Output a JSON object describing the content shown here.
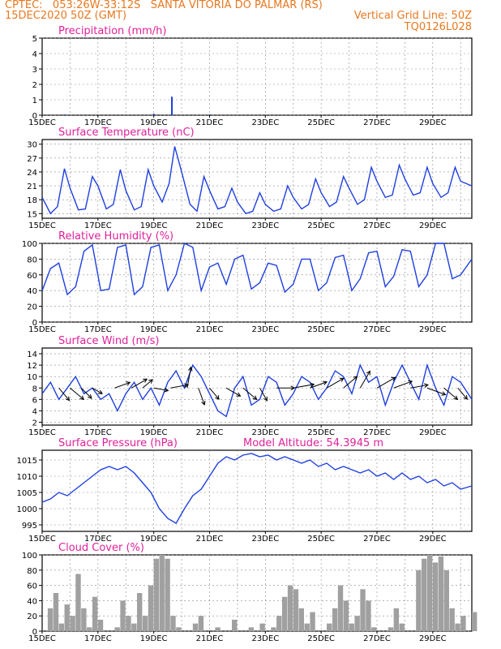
{
  "header": {
    "line1": "CPTEC:   053:26W-33:12S   SANTA VITORIA DO PALMAR (RS)",
    "line2": "15DEC2020 50Z (GMT)",
    "grid_note": "Vertical Grid Line: 50Z",
    "code": "TQ0126L028"
  },
  "x_labels": [
    "15DEC",
    "17DEC",
    "19DEC",
    "21DEC",
    "23DEC",
    "25DEC",
    "27DEC",
    "29DEC"
  ],
  "colors": {
    "line": "#1f3fdf",
    "title": "#e0209a",
    "header": "#e87820",
    "bar": "#a0a0a0",
    "grid": "#8a8a8a"
  },
  "chart_data": [
    {
      "id": "precip",
      "type": "bar",
      "title": "Precipitation (mm/h)",
      "ylim": [
        0,
        5
      ],
      "yticks": [
        0,
        1,
        2,
        3,
        4,
        5
      ],
      "x_range_days": [
        15,
        30.4
      ],
      "x": [
        15.8,
        19.0,
        19.65,
        21.0
      ],
      "values": [
        0.05,
        0.1,
        1.2,
        0.05
      ]
    },
    {
      "id": "temp",
      "type": "line",
      "title": "Surface Temperature (nC)",
      "ylim": [
        14,
        31
      ],
      "yticks": [
        15,
        18,
        21,
        24,
        27,
        30
      ],
      "x_range_days": [
        15,
        30.4
      ],
      "x": [
        15.0,
        15.3,
        15.55,
        15.8,
        16.0,
        16.3,
        16.55,
        16.8,
        17.0,
        17.3,
        17.55,
        17.8,
        18.0,
        18.3,
        18.55,
        18.8,
        19.0,
        19.3,
        19.55,
        19.75,
        20.0,
        20.3,
        20.55,
        20.8,
        21.0,
        21.3,
        21.55,
        21.8,
        22.0,
        22.3,
        22.55,
        22.8,
        23.0,
        23.3,
        23.55,
        23.8,
        24.0,
        24.3,
        24.55,
        24.8,
        25.0,
        25.3,
        25.55,
        25.8,
        26.0,
        26.3,
        26.55,
        26.8,
        27.0,
        27.3,
        27.55,
        27.8,
        28.0,
        28.3,
        28.55,
        28.8,
        29.0,
        29.3,
        29.55,
        29.8,
        30.0,
        30.4
      ],
      "y": [
        18.5,
        15.0,
        16.5,
        24.7,
        20.5,
        15.8,
        16.0,
        23.0,
        21.0,
        16.0,
        17.0,
        24.5,
        20.0,
        15.8,
        16.5,
        24.5,
        21.0,
        17.5,
        21.5,
        29.5,
        24.0,
        17.0,
        15.5,
        23.0,
        20.0,
        16.0,
        16.5,
        20.5,
        17.5,
        15.0,
        15.5,
        19.5,
        17.0,
        15.5,
        16.0,
        21.0,
        18.5,
        16.0,
        17.0,
        22.5,
        19.5,
        16.5,
        17.5,
        23.0,
        20.5,
        17.0,
        18.0,
        25.0,
        22.0,
        18.5,
        19.0,
        25.5,
        22.5,
        19.0,
        19.5,
        25.0,
        21.5,
        18.5,
        19.5,
        25.0,
        22.0,
        21.0
      ]
    },
    {
      "id": "rh",
      "type": "line",
      "title": "Relative Humidity (%)",
      "ylim": [
        0,
        100
      ],
      "yticks": [
        0,
        20,
        40,
        60,
        80,
        100
      ],
      "x_range_days": [
        15,
        30.4
      ],
      "x": [
        15.0,
        15.3,
        15.6,
        15.9,
        16.2,
        16.5,
        16.8,
        17.1,
        17.4,
        17.7,
        18.0,
        18.3,
        18.6,
        18.9,
        19.2,
        19.5,
        19.8,
        20.1,
        20.4,
        20.7,
        21.0,
        21.3,
        21.6,
        21.9,
        22.2,
        22.5,
        22.8,
        23.1,
        23.4,
        23.7,
        24.0,
        24.3,
        24.6,
        24.9,
        25.2,
        25.5,
        25.8,
        26.1,
        26.4,
        26.7,
        27.0,
        27.3,
        27.6,
        27.9,
        28.2,
        28.5,
        28.8,
        29.1,
        29.4,
        29.7,
        30.0,
        30.4
      ],
      "y": [
        40,
        68,
        75,
        35,
        45,
        90,
        98,
        40,
        42,
        95,
        98,
        35,
        45,
        95,
        98,
        40,
        60,
        100,
        95,
        40,
        70,
        75,
        48,
        80,
        85,
        42,
        50,
        75,
        72,
        38,
        48,
        80,
        80,
        40,
        50,
        82,
        85,
        40,
        55,
        88,
        90,
        45,
        58,
        92,
        90,
        45,
        60,
        100,
        100,
        55,
        60,
        80
      ]
    },
    {
      "id": "wind",
      "type": "line",
      "title": "Surface Wind (m/s)",
      "ylim": [
        1.5,
        15
      ],
      "yticks": [
        2,
        4,
        6,
        8,
        10,
        12,
        14
      ],
      "x_range_days": [
        15,
        30.4
      ],
      "x": [
        15.0,
        15.3,
        15.6,
        15.9,
        16.2,
        16.5,
        16.8,
        17.1,
        17.4,
        17.7,
        18.0,
        18.3,
        18.6,
        18.9,
        19.2,
        19.5,
        19.8,
        20.1,
        20.4,
        20.7,
        21.0,
        21.3,
        21.6,
        21.9,
        22.2,
        22.5,
        22.8,
        23.1,
        23.4,
        23.7,
        24.0,
        24.3,
        24.6,
        24.9,
        25.2,
        25.5,
        25.8,
        26.1,
        26.4,
        26.7,
        27.0,
        27.3,
        27.6,
        27.9,
        28.2,
        28.5,
        28.8,
        29.1,
        29.4,
        29.7,
        30.0,
        30.4
      ],
      "y": [
        7,
        9,
        6,
        8,
        10,
        7,
        8,
        6,
        7,
        4,
        7,
        9,
        6,
        8,
        5,
        9,
        11,
        8,
        12,
        10,
        7,
        4,
        3,
        8,
        10,
        5,
        6,
        10,
        9,
        5,
        7,
        10,
        9,
        6,
        8,
        11,
        10,
        7,
        12,
        9,
        10,
        5,
        9,
        12,
        9,
        6,
        12,
        8,
        5,
        10,
        9,
        6
      ],
      "barbs": [
        {
          "x": 15.6,
          "dir": 140,
          "len": 20
        },
        {
          "x": 16.0,
          "dir": 130,
          "len": 22
        },
        {
          "x": 16.4,
          "dir": 135,
          "len": 18
        },
        {
          "x": 16.8,
          "dir": 120,
          "len": 14
        },
        {
          "x": 17.6,
          "dir": 70,
          "len": 20
        },
        {
          "x": 18.2,
          "dir": 60,
          "len": 22
        },
        {
          "x": 18.6,
          "dir": 50,
          "len": 16
        },
        {
          "x": 19.0,
          "dir": 100,
          "len": 18
        },
        {
          "x": 19.6,
          "dir": 80,
          "len": 22
        },
        {
          "x": 20.2,
          "dir": 10,
          "len": 26
        },
        {
          "x": 20.6,
          "dir": 160,
          "len": 22
        },
        {
          "x": 21.0,
          "dir": 140,
          "len": 18
        },
        {
          "x": 21.6,
          "dir": 120,
          "len": 20
        },
        {
          "x": 22.2,
          "dir": 130,
          "len": 22
        },
        {
          "x": 22.8,
          "dir": 150,
          "len": 18
        },
        {
          "x": 23.4,
          "dir": 90,
          "len": 22
        },
        {
          "x": 24.0,
          "dir": 80,
          "len": 26
        },
        {
          "x": 24.6,
          "dir": 70,
          "len": 22
        },
        {
          "x": 25.2,
          "dir": 60,
          "len": 24
        },
        {
          "x": 25.8,
          "dir": 50,
          "len": 22
        },
        {
          "x": 26.4,
          "dir": 30,
          "len": 24
        },
        {
          "x": 27.0,
          "dir": 60,
          "len": 26
        },
        {
          "x": 27.6,
          "dir": 70,
          "len": 24
        },
        {
          "x": 28.2,
          "dir": 80,
          "len": 22
        },
        {
          "x": 28.8,
          "dir": 110,
          "len": 24
        },
        {
          "x": 29.4,
          "dir": 130,
          "len": 22
        },
        {
          "x": 29.9,
          "dir": 140,
          "len": 18
        }
      ]
    },
    {
      "id": "pres",
      "type": "line",
      "title": "Surface Pressure (hPa)",
      "annotation": "Model Altitude: 54.3945 m",
      "ylim": [
        993,
        1018
      ],
      "yticks": [
        995,
        1000,
        1005,
        1010,
        1015
      ],
      "x_range_days": [
        15,
        30.4
      ],
      "x": [
        15.0,
        15.3,
        15.6,
        15.9,
        16.2,
        16.5,
        16.8,
        17.1,
        17.4,
        17.7,
        18.0,
        18.3,
        18.6,
        18.9,
        19.2,
        19.5,
        19.8,
        20.1,
        20.4,
        20.7,
        21.0,
        21.3,
        21.6,
        21.9,
        22.2,
        22.5,
        22.8,
        23.1,
        23.4,
        23.7,
        24.0,
        24.3,
        24.6,
        24.9,
        25.2,
        25.5,
        25.8,
        26.1,
        26.4,
        26.7,
        27.0,
        27.3,
        27.6,
        27.9,
        28.2,
        28.5,
        28.8,
        29.1,
        29.4,
        29.7,
        30.0,
        30.4
      ],
      "y": [
        1002,
        1003,
        1005,
        1004,
        1006,
        1008,
        1010,
        1012,
        1013,
        1012,
        1013,
        1011,
        1008,
        1005,
        1000,
        997,
        995.5,
        1000,
        1004,
        1006,
        1010,
        1014,
        1016,
        1015,
        1016.5,
        1017,
        1016,
        1016.5,
        1015,
        1016,
        1015,
        1014,
        1015,
        1013,
        1014,
        1012,
        1013,
        1012,
        1011,
        1012,
        1010,
        1011,
        1009,
        1011,
        1009,
        1010,
        1008,
        1009,
        1007,
        1008,
        1006,
        1007
      ]
    },
    {
      "id": "cloud",
      "type": "area",
      "title": "Cloud Cover (%)",
      "ylim": [
        0,
        100
      ],
      "yticks": [
        0,
        20,
        40,
        60,
        80,
        100
      ],
      "x_range_days": [
        15,
        30.4
      ],
      "x": [
        15.0,
        15.2,
        15.4,
        15.6,
        15.8,
        16.0,
        16.2,
        16.4,
        16.6,
        16.8,
        17.0,
        17.2,
        17.4,
        17.6,
        17.8,
        18.0,
        18.2,
        18.4,
        18.6,
        18.8,
        19.0,
        19.2,
        19.4,
        19.6,
        19.8,
        20.0,
        20.2,
        20.4,
        20.6,
        20.8,
        21.0,
        21.2,
        21.4,
        21.6,
        21.8,
        22.0,
        22.2,
        22.4,
        22.6,
        22.8,
        23.0,
        23.2,
        23.4,
        23.6,
        23.8,
        24.0,
        24.2,
        24.4,
        24.6,
        24.8,
        25.0,
        25.2,
        25.4,
        25.6,
        25.8,
        26.0,
        26.2,
        26.4,
        26.6,
        26.8,
        27.0,
        27.2,
        27.4,
        27.6,
        27.8,
        28.0,
        28.2,
        28.4,
        28.6,
        28.8,
        29.0,
        29.2,
        29.4,
        29.6,
        29.8,
        30.0,
        30.4
      ],
      "y": [
        0,
        30,
        50,
        10,
        35,
        20,
        75,
        30,
        5,
        45,
        15,
        0,
        0,
        5,
        40,
        20,
        10,
        50,
        20,
        60,
        95,
        100,
        95,
        20,
        5,
        0,
        0,
        10,
        20,
        0,
        0,
        5,
        0,
        0,
        15,
        0,
        0,
        5,
        0,
        10,
        0,
        5,
        20,
        45,
        60,
        55,
        30,
        10,
        25,
        0,
        0,
        10,
        30,
        60,
        40,
        10,
        20,
        55,
        40,
        5,
        0,
        0,
        5,
        30,
        10,
        0,
        0,
        80,
        95,
        100,
        90,
        98,
        80,
        30,
        10,
        20,
        25
      ]
    }
  ]
}
